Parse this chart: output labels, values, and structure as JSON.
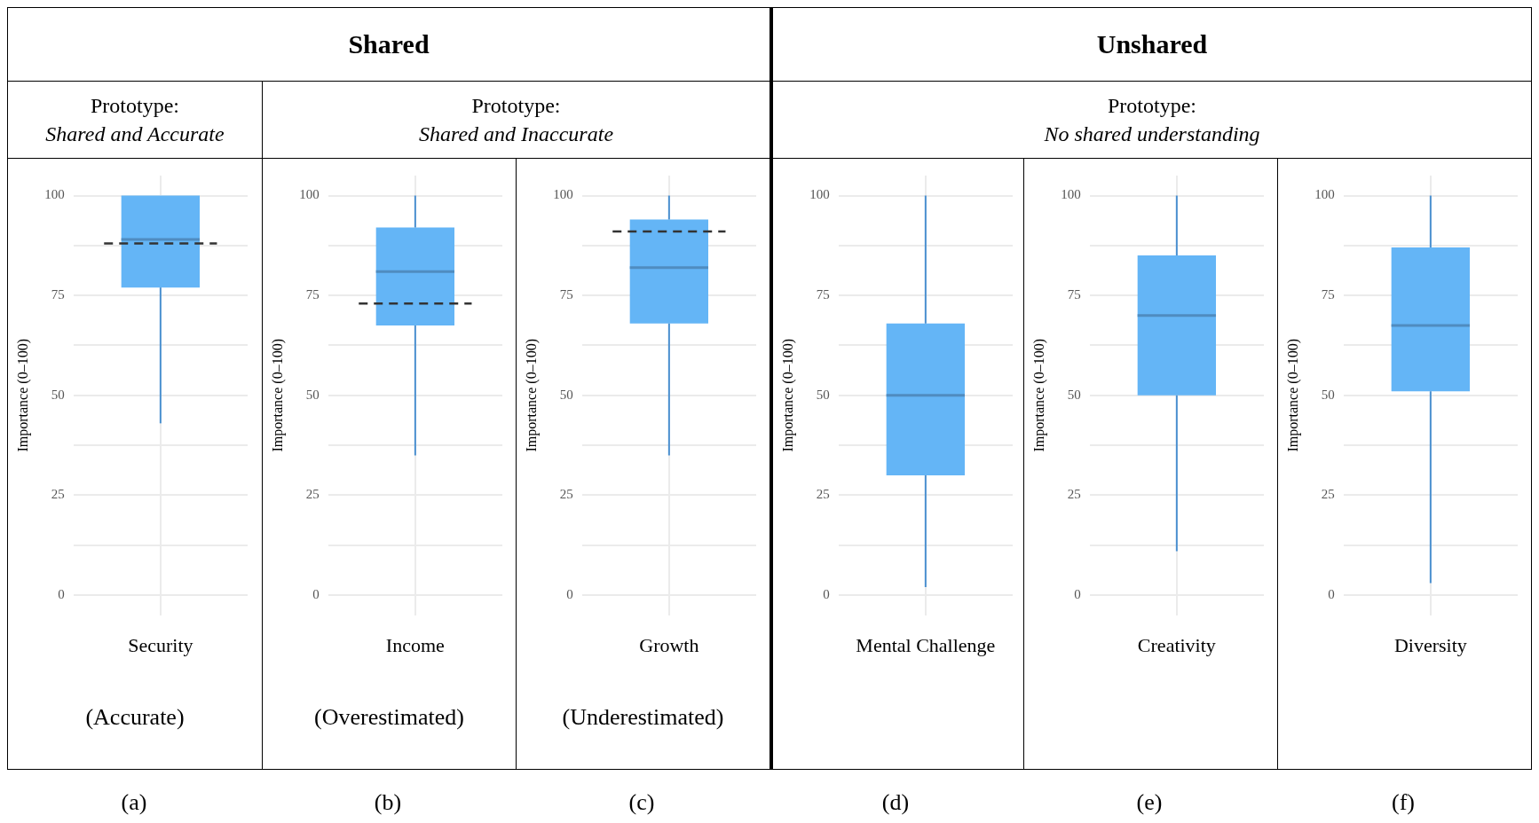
{
  "chart_data": [
    {
      "type": "other",
      "annotations": [
        "Shared",
        "Unshared",
        "Prototype: Shared and Accurate",
        "Prototype: Shared and Inaccurate",
        "Prototype: No shared understanding"
      ]
    },
    {
      "type": "box",
      "categories": [
        "Security"
      ],
      "color": "#64b5f6",
      "boxes": [
        {
          "low": 43,
          "q1": 77,
          "median": 89,
          "q3": 100,
          "high": 100
        }
      ],
      "ylabel": "Importance (0–100)",
      "ylim": [
        -5,
        105
      ],
      "yticks": [
        0,
        {
          "value": 12.5,
          "label": null
        },
        25,
        {
          "value": 37.5,
          "label": null
        },
        50,
        {
          "value": 62.5,
          "label": null
        },
        75,
        {
          "value": 87.5,
          "label": null
        },
        100
      ],
      "grid": true,
      "ref_lines": [
        {
          "axis": "y",
          "value": 88,
          "color": "#333333",
          "line_style": "dashed"
        }
      ],
      "annotations": [
        "(Accurate)",
        "(a)"
      ]
    },
    {
      "type": "box",
      "categories": [
        "Income"
      ],
      "color": "#64b5f6",
      "boxes": [
        {
          "low": 35,
          "q1": 67.5,
          "median": 81,
          "q3": 92,
          "high": 100
        }
      ],
      "ylabel": "Importance (0–100)",
      "ylim": [
        -5,
        105
      ],
      "yticks": [
        0,
        {
          "value": 12.5,
          "label": null
        },
        25,
        {
          "value": 37.5,
          "label": null
        },
        50,
        {
          "value": 62.5,
          "label": null
        },
        75,
        {
          "value": 87.5,
          "label": null
        },
        100
      ],
      "grid": true,
      "ref_lines": [
        {
          "axis": "y",
          "value": 73,
          "color": "#333333",
          "line_style": "dashed"
        }
      ],
      "annotations": [
        "(Overestimated)",
        "(b)"
      ]
    },
    {
      "type": "box",
      "categories": [
        "Growth"
      ],
      "color": "#64b5f6",
      "boxes": [
        {
          "low": 35,
          "q1": 68,
          "median": 82,
          "q3": 94,
          "high": 100
        }
      ],
      "ylabel": "Importance (0–100)",
      "ylim": [
        -5,
        105
      ],
      "yticks": [
        0,
        {
          "value": 12.5,
          "label": null
        },
        25,
        {
          "value": 37.5,
          "label": null
        },
        50,
        {
          "value": 62.5,
          "label": null
        },
        75,
        {
          "value": 87.5,
          "label": null
        },
        100
      ],
      "grid": true,
      "ref_lines": [
        {
          "axis": "y",
          "value": 91,
          "color": "#333333",
          "line_style": "dashed"
        }
      ],
      "annotations": [
        "(Underestimated)",
        "(c)"
      ]
    },
    {
      "type": "box",
      "categories": [
        "Mental Challenge"
      ],
      "color": "#64b5f6",
      "boxes": [
        {
          "low": 2,
          "q1": 30,
          "median": 50,
          "q3": 68,
          "high": 100
        }
      ],
      "ylabel": "Importance (0–100)",
      "ylim": [
        -5,
        105
      ],
      "yticks": [
        0,
        {
          "value": 12.5,
          "label": null
        },
        25,
        {
          "value": 37.5,
          "label": null
        },
        50,
        {
          "value": 62.5,
          "label": null
        },
        75,
        {
          "value": 87.5,
          "label": null
        },
        100
      ],
      "grid": true,
      "annotations": [
        "(d)"
      ]
    },
    {
      "type": "box",
      "categories": [
        "Creativity"
      ],
      "color": "#64b5f6",
      "boxes": [
        {
          "low": 11,
          "q1": 50,
          "median": 70,
          "q3": 85,
          "high": 100
        }
      ],
      "ylabel": "Importance (0–100)",
      "ylim": [
        -5,
        105
      ],
      "yticks": [
        0,
        {
          "value": 12.5,
          "label": null
        },
        25,
        {
          "value": 37.5,
          "label": null
        },
        50,
        {
          "value": 62.5,
          "label": null
        },
        75,
        {
          "value": 87.5,
          "label": null
        },
        100
      ],
      "grid": true,
      "annotations": [
        "(e)"
      ]
    },
    {
      "type": "box",
      "categories": [
        "Diversity"
      ],
      "color": "#64b5f6",
      "boxes": [
        {
          "low": 3,
          "q1": 51,
          "median": 67.5,
          "q3": 87,
          "high": 100
        }
      ],
      "ylabel": "Importance (0–100)",
      "ylim": [
        -5,
        105
      ],
      "yticks": [
        0,
        {
          "value": 12.5,
          "label": null
        },
        25,
        {
          "value": 37.5,
          "label": null
        },
        50,
        {
          "value": 62.5,
          "label": null
        },
        75,
        {
          "value": 87.5,
          "label": null
        },
        100
      ],
      "grid": true,
      "annotations": [
        "(f)"
      ]
    }
  ]
}
